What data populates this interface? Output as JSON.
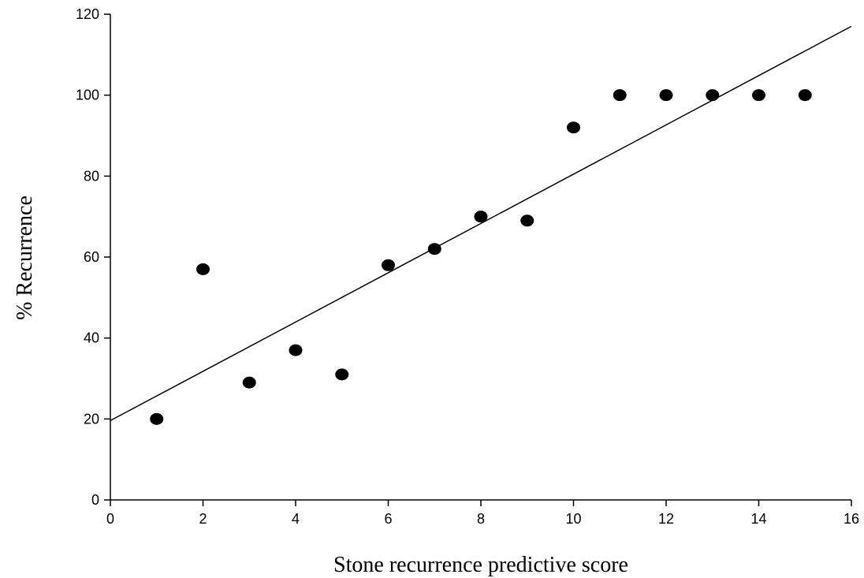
{
  "chart_data": {
    "type": "scatter",
    "title": "",
    "xlabel": "Stone recurrence predictive score",
    "ylabel": "% Recurrence",
    "xlim": [
      0,
      16
    ],
    "ylim": [
      0,
      120
    ],
    "x_ticks": [
      0,
      2,
      4,
      6,
      8,
      10,
      12,
      14,
      16
    ],
    "y_ticks": [
      0,
      20,
      40,
      60,
      80,
      100,
      120
    ],
    "grid": false,
    "legend": "none",
    "series": [
      {
        "x": [
          1,
          2,
          3,
          4,
          5,
          6,
          7,
          8,
          9,
          10,
          11,
          12,
          13,
          14,
          15
        ],
        "y": [
          20,
          57,
          29,
          37,
          31,
          58,
          62,
          70,
          69,
          92,
          100,
          100,
          100,
          100,
          100
        ],
        "color": "#000000"
      }
    ],
    "trendline": {
      "type": "linear",
      "x": [
        0,
        16
      ],
      "y": [
        19.6,
        117
      ]
    }
  }
}
